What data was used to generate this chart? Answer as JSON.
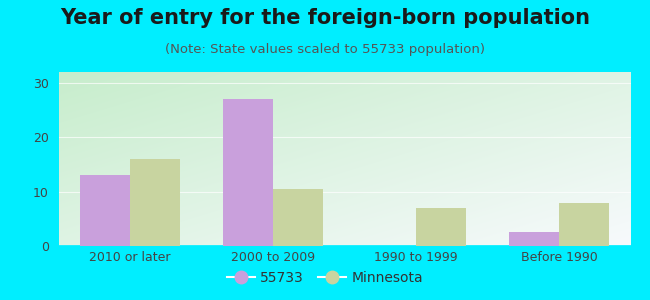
{
  "title": "Year of entry for the foreign-born population",
  "subtitle": "(Note: State values scaled to 55733 population)",
  "categories": [
    "2010 or later",
    "2000 to 2009",
    "1990 to 1999",
    "Before 1990"
  ],
  "series_55733": [
    13,
    27,
    0,
    2.5
  ],
  "series_minnesota": [
    16,
    10.5,
    7,
    8
  ],
  "color_55733": "#c9a0dc",
  "color_minnesota": "#c8d4a0",
  "background_outer": "#00eeff",
  "ylim": [
    0,
    32
  ],
  "yticks": [
    0,
    10,
    20,
    30
  ],
  "legend_55733": "55733",
  "legend_minnesota": "Minnesota",
  "bar_width": 0.35,
  "title_fontsize": 15,
  "subtitle_fontsize": 9.5,
  "tick_fontsize": 9,
  "legend_fontsize": 10
}
